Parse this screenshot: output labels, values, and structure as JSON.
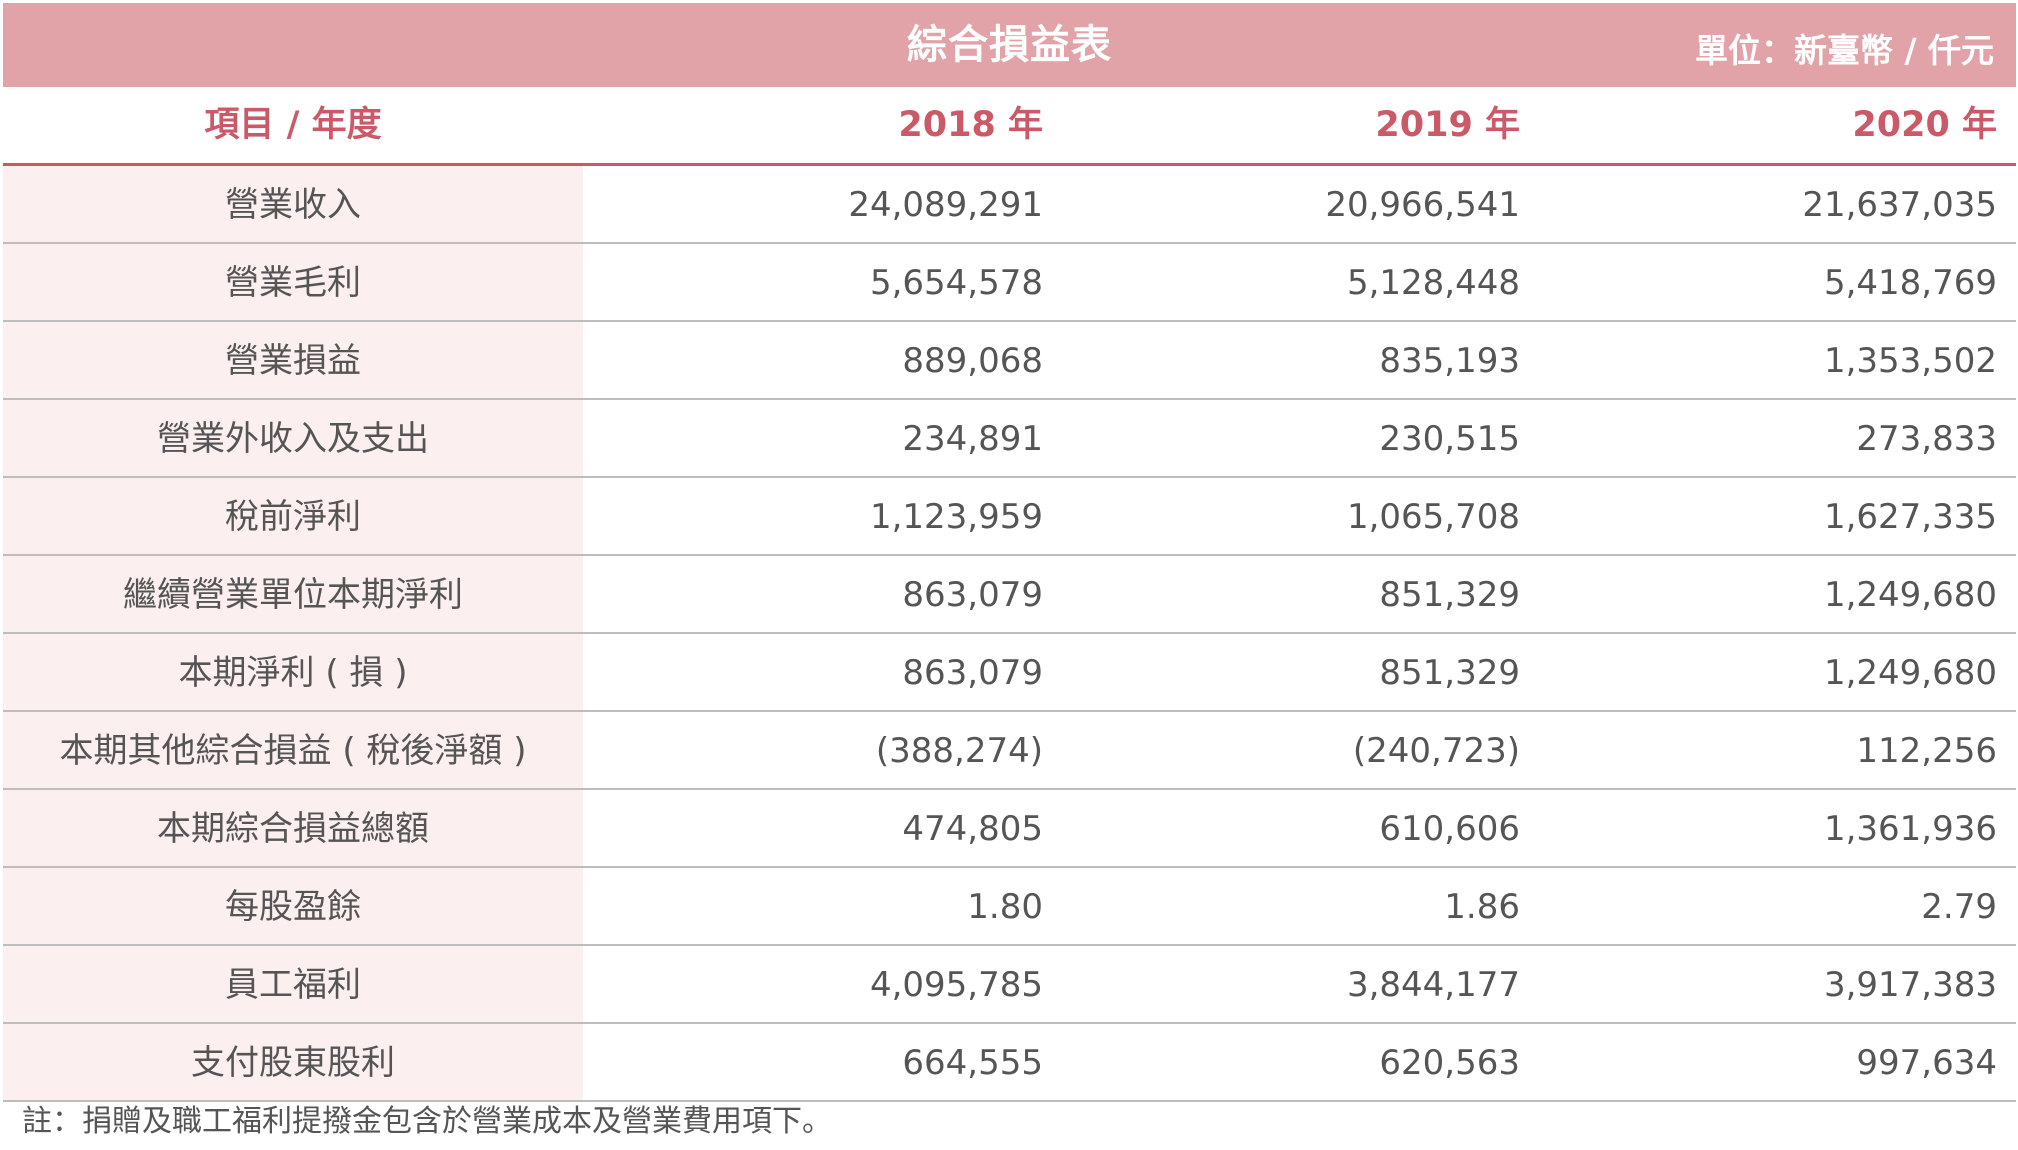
{
  "header": {
    "title": "綜合損益表",
    "unit": "單位：新臺幣 / 仟元"
  },
  "columns": {
    "item": "項目 / 年度",
    "years": [
      "2018 年",
      "2019 年",
      "2020 年"
    ]
  },
  "rows": [
    {
      "label": "營業收入",
      "values": [
        "24,089,291",
        "20,966,541",
        "21,637,035"
      ]
    },
    {
      "label": "營業毛利",
      "values": [
        "5,654,578",
        "5,128,448",
        "5,418,769"
      ]
    },
    {
      "label": "營業損益",
      "values": [
        "889,068",
        "835,193",
        "1,353,502"
      ]
    },
    {
      "label": "營業外收入及支出",
      "values": [
        "234,891",
        "230,515",
        "273,833"
      ]
    },
    {
      "label": "稅前淨利",
      "values": [
        "1,123,959",
        "1,065,708",
        "1,627,335"
      ]
    },
    {
      "label": "繼續營業單位本期淨利",
      "values": [
        "863,079",
        "851,329",
        "1,249,680"
      ]
    },
    {
      "label": "本期淨利 ( 損 )",
      "values": [
        "863,079",
        "851,329",
        "1,249,680"
      ]
    },
    {
      "label": "本期其他綜合損益 ( 稅後淨額 )",
      "values": [
        "(388,274)",
        "(240,723)",
        "112,256"
      ]
    },
    {
      "label": "本期綜合損益總額",
      "values": [
        "474,805",
        "610,606",
        "1,361,936"
      ]
    },
    {
      "label": "每股盈餘",
      "values": [
        "1.80",
        "1.86",
        "2.79"
      ]
    },
    {
      "label": "員工福利",
      "values": [
        "4,095,785",
        "3,844,177",
        "3,917,383"
      ]
    },
    {
      "label": "支付股東股利",
      "values": [
        "664,555",
        "620,563",
        "997,634"
      ]
    }
  ],
  "note": "註：捐贈及職工福利提撥金包含於營業成本及營業費用項下。",
  "colors": {
    "banner": "#e1a3a7",
    "accent": "#cb5a68",
    "label_bg": "#fcefef",
    "rule": "#bdbdbd"
  }
}
